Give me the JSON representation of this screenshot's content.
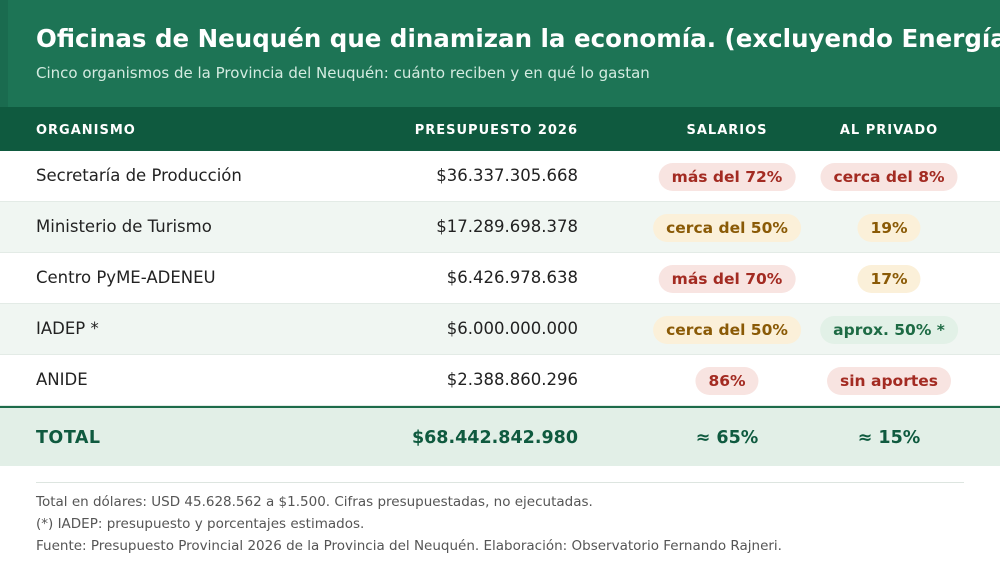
{
  "header": {
    "title": "Oficinas de Neuquén que dinamizan la economía. (excluyendo Energía)",
    "subtitle": "Cinco organismos de la Provincia del Neuquén: cuánto reciben y en qué lo gastan",
    "color": "#1d7455"
  },
  "table": {
    "columns": [
      "ORGANISMO",
      "PRESUPUESTO 2026",
      "SALARIOS",
      "AL PRIVADO"
    ],
    "rows": [
      {
        "name": "Secretaría de Producción",
        "budget": "$36.337.305.668",
        "salarios": "más del 72%",
        "salarios_tone": "red",
        "privado": "cerca del 8%",
        "privado_tone": "red"
      },
      {
        "name": "Ministerio de Turismo",
        "budget": "$17.289.698.378",
        "salarios": "cerca del 50%",
        "salarios_tone": "amber",
        "privado": "19%",
        "privado_tone": "amber"
      },
      {
        "name": "Centro PyME-ADENEU",
        "budget": "$6.426.978.638",
        "salarios": "más del 70%",
        "salarios_tone": "red",
        "privado": "17%",
        "privado_tone": "amber"
      },
      {
        "name": "IADEP *",
        "budget": "$6.000.000.000",
        "salarios": "cerca del 50%",
        "salarios_tone": "amber",
        "privado": "aprox. 50% *",
        "privado_tone": "green"
      },
      {
        "name": "ANIDE",
        "budget": "$2.388.860.296",
        "salarios": "86%",
        "salarios_tone": "red",
        "privado": "sin aportes",
        "privado_tone": "red"
      }
    ],
    "total": {
      "label": "TOTAL",
      "budget": "$68.442.842.980",
      "salarios": "≈ 65%",
      "privado": "≈ 15%"
    }
  },
  "footer": {
    "note1": "Total en dólares: USD 45.628.562 a $1.500. Cifras presupuestadas, no ejecutadas.",
    "note2": "(*) IADEP: presupuesto y porcentajes estimados.",
    "note3": "Fuente: Presupuesto Provincial 2026 de la Provincia del Neuquén. Elaboración: Observatorio Fernando Rajneri."
  }
}
